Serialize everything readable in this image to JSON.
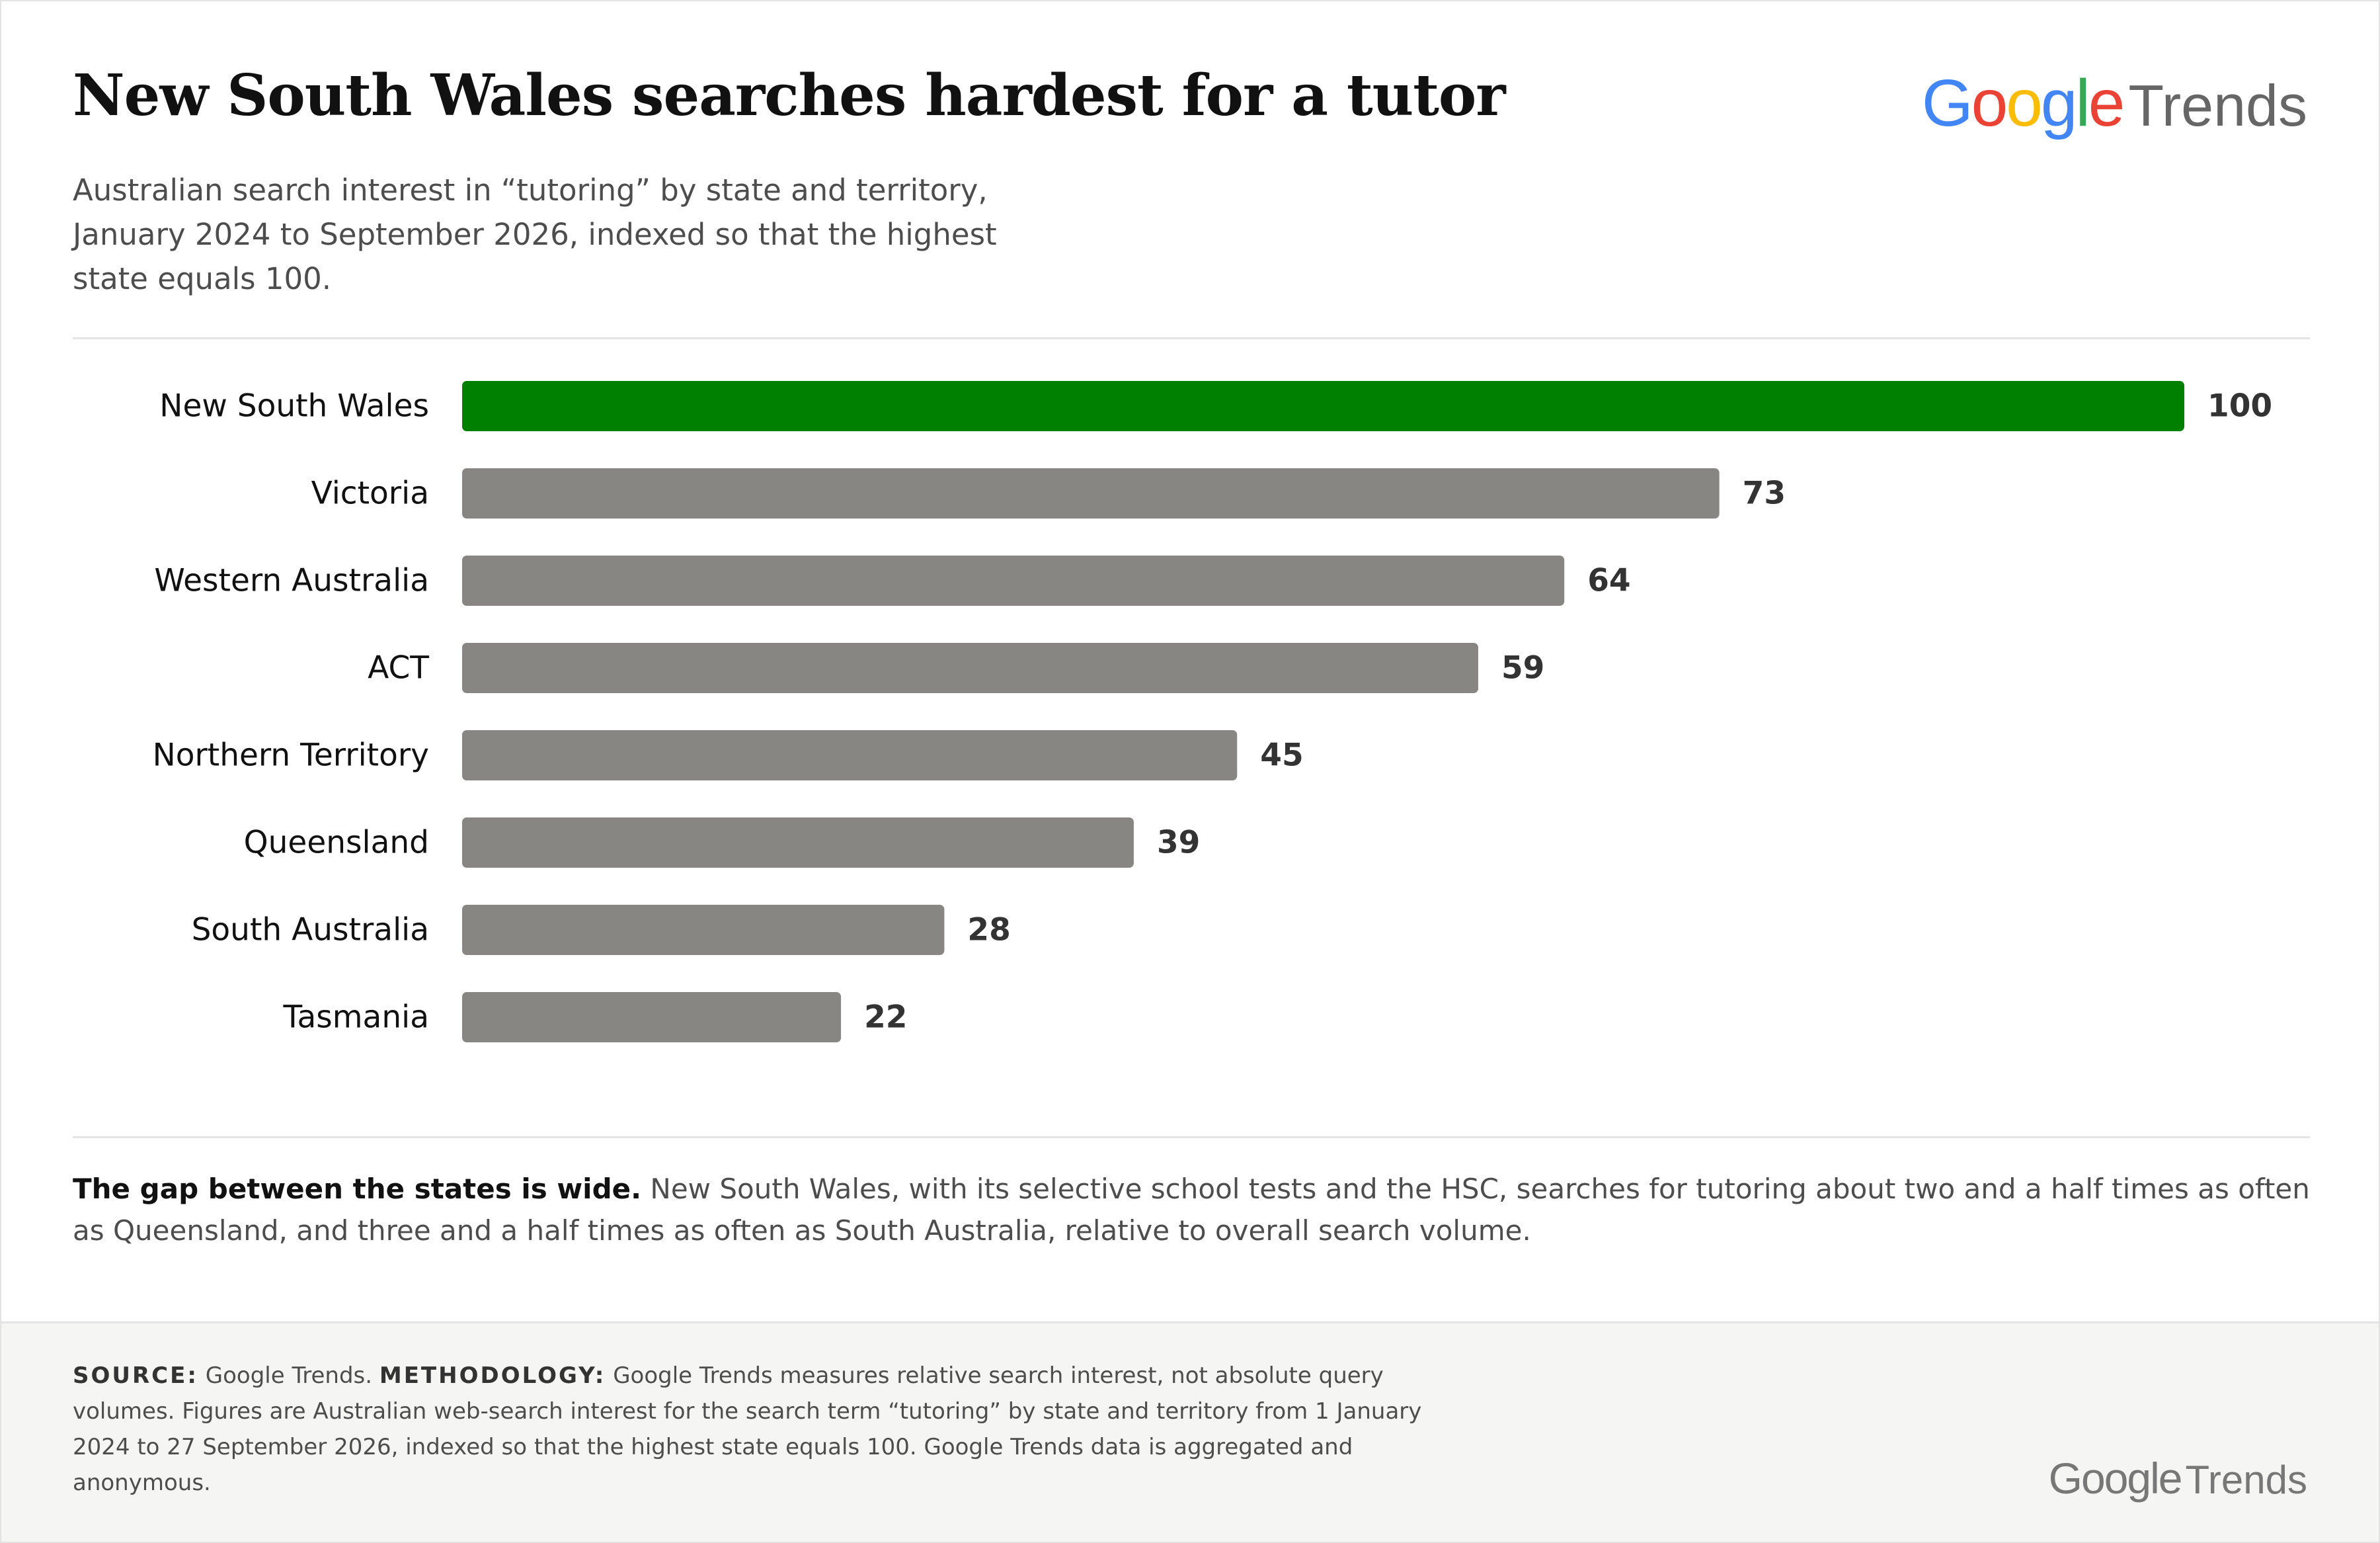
{
  "header": {
    "title": "New South Wales searches hardest for a tutor",
    "subtitle": "Australian search interest in “tutoring” by state and territory, January 2024 to September 2026, indexed so that the highest state equals 100.",
    "brand": {
      "google": [
        "G",
        "o",
        "o",
        "g",
        "l",
        "e"
      ],
      "trends": "Trends"
    }
  },
  "colors": {
    "highlight": "#008000",
    "bar": "#878682",
    "google": [
      "#4285F4",
      "#EA4335",
      "#FBBC05",
      "#4285F4",
      "#34A853",
      "#EA4335"
    ]
  },
  "chart_data": {
    "type": "bar",
    "orientation": "horizontal",
    "categories": [
      "New South Wales",
      "Victoria",
      "Western Australia",
      "ACT",
      "Northern Territory",
      "Queensland",
      "South Australia",
      "Tasmania"
    ],
    "values": [
      100,
      73,
      64,
      59,
      45,
      39,
      28,
      22
    ],
    "highlighted": "New South Wales",
    "xlim": [
      0,
      100
    ],
    "grid": false,
    "legend": "none"
  },
  "note": {
    "lead": "The gap between the states is wide.",
    "body": " New South Wales, with its selective school tests and the HSC, searches for tutoring about two and a half times as often as Queensland, and three and a half times as often as South Australia, relative to overall search volume."
  },
  "footer": {
    "source_label": "SOURCE:",
    "source_text": " Google Trends. ",
    "method_label": "METHODOLOGY:",
    "method_text": " Google Trends measures relative search interest, not absolute query volumes. Figures are Australian web-search interest for the search term “tutoring” by state and territory from 1 January 2024 to 27 September 2026, indexed so that the highest state equals 100. Google Trends data is aggregated and anonymous.",
    "brand_google": "Google",
    "brand_trends": "Trends"
  }
}
